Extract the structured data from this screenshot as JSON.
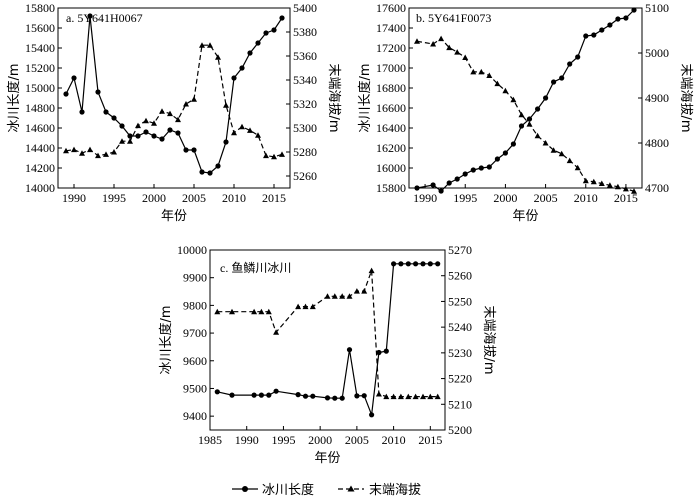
{
  "legend": {
    "length": "冰川长度",
    "elevation": "末端海拔"
  },
  "chart_data": [
    {
      "type": "line",
      "title": "a. 5Y641H0067",
      "xlabel": "年份",
      "ylabel": "冰川长度/m",
      "y2label": "末端海拔/m",
      "xlim": [
        1988,
        2017
      ],
      "ylim": [
        14000,
        15800
      ],
      "y2lim": [
        5250,
        5400
      ],
      "xticks": [
        1990,
        1995,
        2000,
        2005,
        2010,
        2015
      ],
      "yticks": [
        14000,
        14200,
        14400,
        14600,
        14800,
        15000,
        15200,
        15400,
        15600,
        15800
      ],
      "y2ticks": [
        5260,
        5280,
        5300,
        5320,
        5340,
        5360,
        5380,
        5400
      ],
      "series": [
        {
          "name": "冰川长度",
          "axis": "left",
          "marker": "circle",
          "style": "solid",
          "x": [
            1989,
            1990,
            1991,
            1992,
            1993,
            1994,
            1995,
            1996,
            1997,
            1998,
            1999,
            2000,
            2001,
            2002,
            2003,
            2004,
            2005,
            2006,
            2007,
            2008,
            2009,
            2010,
            2011,
            2012,
            2013,
            2014,
            2015,
            2016
          ],
          "values": [
            14940,
            15100,
            14760,
            15720,
            14960,
            14760,
            14700,
            14620,
            14520,
            14520,
            14560,
            14520,
            14490,
            14580,
            14550,
            14380,
            14380,
            14160,
            14150,
            14220,
            14460,
            15100,
            15200,
            15350,
            15450,
            15550,
            15580,
            15700
          ]
        },
        {
          "name": "末端海拔",
          "axis": "right",
          "marker": "triangle",
          "style": "dashed",
          "x": [
            1989,
            1990,
            1991,
            1992,
            1993,
            1994,
            1995,
            1996,
            1997,
            1998,
            1999,
            2000,
            2001,
            2002,
            2003,
            2004,
            2005,
            2006,
            2007,
            2008,
            2009,
            2010,
            2011,
            2012,
            2013,
            2014,
            2015,
            2016
          ],
          "values": [
            5281,
            5282,
            5279,
            5282,
            5277,
            5278,
            5280,
            5289,
            5289,
            5302,
            5306,
            5304,
            5314,
            5312,
            5307,
            5320,
            5324,
            5369,
            5369,
            5359,
            5319,
            5296,
            5301,
            5298,
            5294,
            5277,
            5276,
            5278
          ]
        }
      ]
    },
    {
      "type": "line",
      "title": "b. 5Y641F0073",
      "xlabel": "年份",
      "ylabel": "冰川长度/m",
      "y2label": "末端海拔/m",
      "xlim": [
        1988,
        2017
      ],
      "ylim": [
        15800,
        17600
      ],
      "y2lim": [
        4700,
        5100
      ],
      "xticks": [
        1990,
        1995,
        2000,
        2005,
        2010,
        2015
      ],
      "yticks": [
        15800,
        16000,
        16200,
        16400,
        16600,
        16800,
        17000,
        17200,
        17400,
        17600
      ],
      "y2ticks": [
        4700,
        4800,
        4900,
        5000,
        5100
      ],
      "series": [
        {
          "name": "冰川长度",
          "axis": "left",
          "marker": "circle",
          "style": "solid",
          "x": [
            1989,
            1991,
            1992,
            1993,
            1994,
            1995,
            1996,
            1997,
            1998,
            1999,
            2000,
            2001,
            2002,
            2003,
            2004,
            2005,
            2006,
            2007,
            2008,
            2009,
            2010,
            2011,
            2012,
            2013,
            2014,
            2015,
            2016
          ],
          "values": [
            15800,
            15830,
            15770,
            15850,
            15890,
            15940,
            15980,
            16000,
            16010,
            16090,
            16150,
            16240,
            16420,
            16490,
            16590,
            16700,
            16860,
            16900,
            17040,
            17110,
            17320,
            17330,
            17380,
            17430,
            17490,
            17500,
            17580
          ]
        },
        {
          "name": "末端海拔",
          "axis": "right",
          "marker": "triangle",
          "style": "dashed",
          "x": [
            1989,
            1991,
            1992,
            1993,
            1994,
            1995,
            1996,
            1997,
            1998,
            1999,
            2000,
            2001,
            2002,
            2003,
            2004,
            2005,
            2006,
            2007,
            2008,
            2009,
            2010,
            2011,
            2012,
            2013,
            2014,
            2015,
            2016
          ],
          "values": [
            5026,
            5020,
            5032,
            5012,
            5002,
            4990,
            4958,
            4958,
            4950,
            4932,
            4916,
            4896,
            4863,
            4842,
            4816,
            4800,
            4784,
            4776,
            4761,
            4745,
            4716,
            4714,
            4710,
            4706,
            4703,
            4698,
            4693
          ]
        }
      ]
    },
    {
      "type": "line",
      "title": "c. 鱼鳞川冰川",
      "xlabel": "年份",
      "ylabel": "冰川长度/m",
      "y2label": "末端海拔/m",
      "xlim": [
        1985,
        2017
      ],
      "ylim": [
        9350,
        10000
      ],
      "y2lim": [
        5200,
        5270
      ],
      "xticks": [
        1985,
        1990,
        1995,
        2000,
        2005,
        2010,
        2015
      ],
      "yticks": [
        9400,
        9500,
        9600,
        9700,
        9800,
        9900,
        10000
      ],
      "y2ticks": [
        5200,
        5210,
        5220,
        5230,
        5240,
        5250,
        5260,
        5270
      ],
      "series": [
        {
          "name": "冰川长度",
          "axis": "left",
          "marker": "circle",
          "style": "solid",
          "x": [
            1986,
            1988,
            1991,
            1992,
            1993,
            1994,
            1997,
            1998,
            1999,
            2001,
            2002,
            2003,
            2004,
            2005,
            2006,
            2007,
            2008,
            2009,
            2010,
            2011,
            2012,
            2013,
            2014,
            2015,
            2016
          ],
          "values": [
            9488,
            9476,
            9476,
            9476,
            9476,
            9490,
            9478,
            9472,
            9472,
            9466,
            9465,
            9465,
            9640,
            9473,
            9474,
            9405,
            9630,
            9635,
            9950,
            9950,
            9950,
            9950,
            9950,
            9950,
            9950
          ]
        },
        {
          "name": "末端海拔",
          "axis": "right",
          "marker": "triangle",
          "style": "dashed",
          "x": [
            1986,
            1988,
            1991,
            1992,
            1993,
            1994,
            1997,
            1998,
            1999,
            2001,
            2002,
            2003,
            2004,
            2005,
            2006,
            2007,
            2008,
            2009,
            2010,
            2011,
            2012,
            2013,
            2014,
            2015,
            2016
          ],
          "values": [
            5246,
            5246,
            5246,
            5246,
            5246,
            5238,
            5248,
            5248,
            5248,
            5252,
            5252,
            5252,
            5252,
            5254,
            5254,
            5262,
            5214,
            5213,
            5213,
            5213,
            5213,
            5213,
            5213,
            5213,
            5213
          ]
        }
      ]
    }
  ]
}
